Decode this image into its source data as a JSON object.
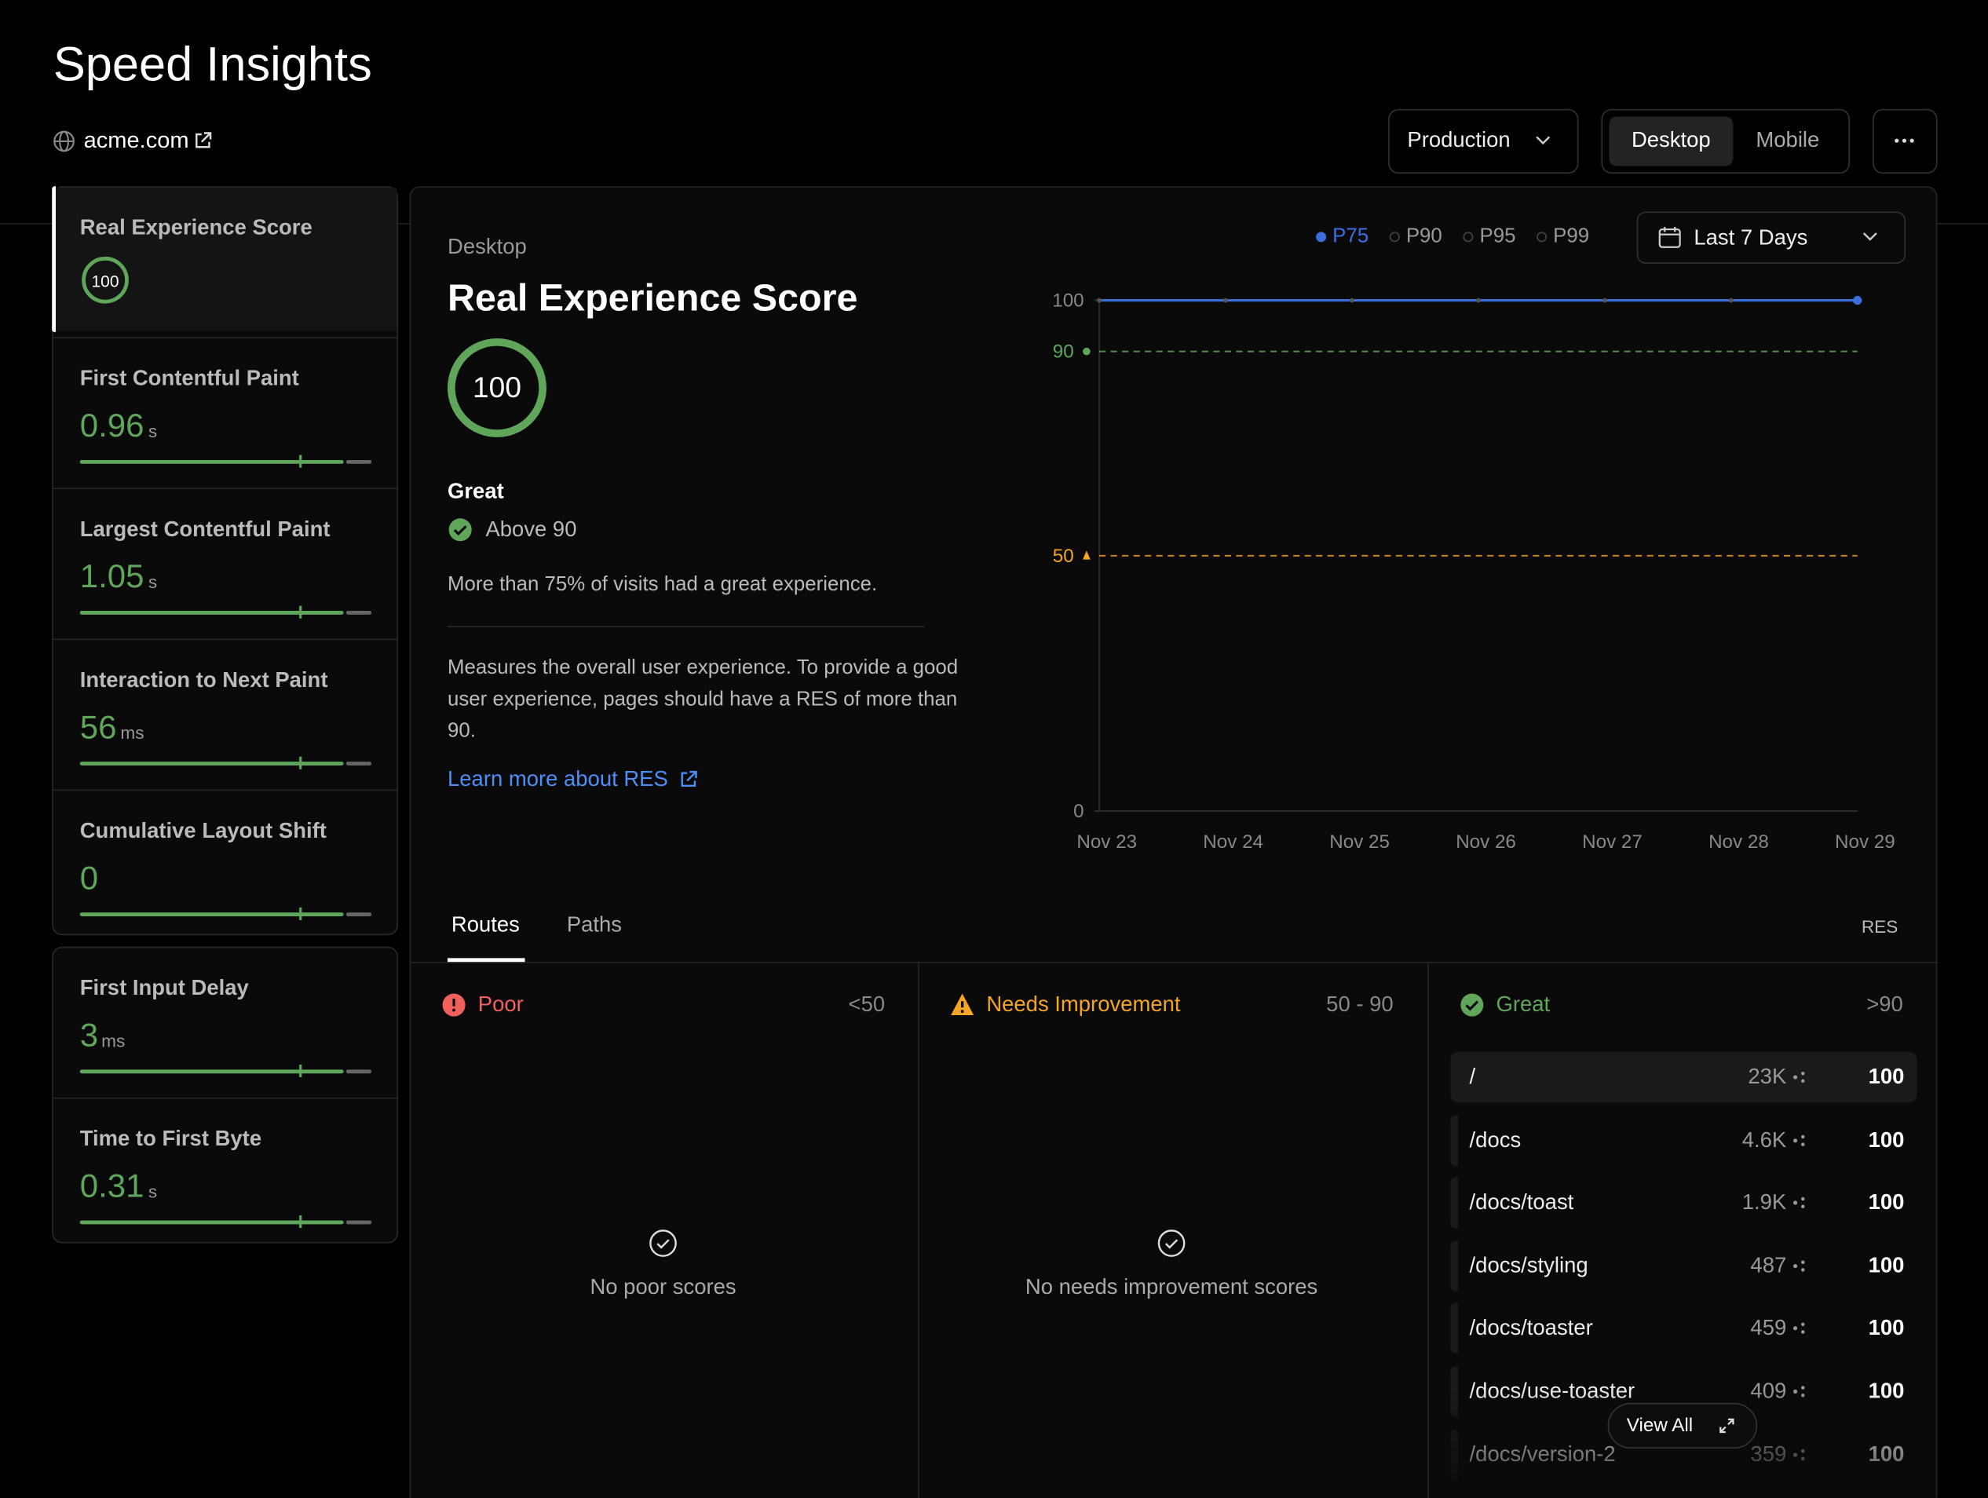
{
  "header": {
    "title": "Speed Insights",
    "site": "acme.com",
    "environment": "Production",
    "devices": [
      "Desktop",
      "Mobile"
    ]
  },
  "metric_groups": [
    [
      {
        "name": "Real Experience Score",
        "value": 100
      },
      {
        "name": "First Contentful Paint",
        "value": 0.96,
        "unit": "s"
      },
      {
        "name": "Largest Contentful Paint",
        "value": 1.05,
        "unit": "s"
      },
      {
        "name": "Interaction to Next Paint",
        "value": 56,
        "unit": "ms"
      },
      {
        "name": "Cumulative Layout Shift",
        "value": 0
      }
    ],
    [
      {
        "name": "First Input Delay",
        "value": 3,
        "unit": "ms"
      },
      {
        "name": "Time to First Byte",
        "value": 0.31,
        "unit": "s"
      }
    ]
  ],
  "detail": {
    "device": "Desktop",
    "title": "Real Experience Score",
    "score": 100,
    "rating": "Great",
    "threshold": "Above 90",
    "summary": "More than 75% of visits had a great experience.",
    "description": "Measures the overall user experience. To provide a good user experience, pages should have a RES of more than 90.",
    "link": "Learn more about RES"
  },
  "chart": {
    "type": "line",
    "percentiles": [
      "P75",
      "P90",
      "P95",
      "P99"
    ],
    "range": "Last 7 Days",
    "x": [
      "Nov 23",
      "Nov 24",
      "Nov 25",
      "Nov 26",
      "Nov 27",
      "Nov 28",
      "Nov 29"
    ],
    "series": [
      {
        "name": "P75",
        "color": "#3b6fe0",
        "values": [
          100,
          100,
          100,
          100,
          100,
          100,
          100
        ]
      }
    ],
    "ylim": [
      0,
      100
    ],
    "yticks": [
      0,
      100
    ],
    "thresholds": [
      {
        "value": 90,
        "color": "#5fa55a"
      },
      {
        "value": 50,
        "color": "#f5a524"
      }
    ]
  },
  "tabs": [
    "Routes",
    "Paths"
  ],
  "metric_label": "RES",
  "buckets": [
    {
      "name": "Poor",
      "range": "<50",
      "color": "#f0605d",
      "empty": "No poor scores"
    },
    {
      "name": "Needs Improvement",
      "range": "50 - 90",
      "color": "#f5a524",
      "empty": "No needs improvement scores"
    },
    {
      "name": "Great",
      "range": ">90",
      "color": "#5fa55a",
      "routes": [
        {
          "path": "/",
          "visits": "23K",
          "score": 100
        },
        {
          "path": "/docs",
          "visits": "4.6K",
          "score": 100
        },
        {
          "path": "/docs/toast",
          "visits": "1.9K",
          "score": 100
        },
        {
          "path": "/docs/styling",
          "visits": "487",
          "score": 100
        },
        {
          "path": "/docs/toaster",
          "visits": "459",
          "score": 100
        },
        {
          "path": "/docs/use-toaster",
          "visits": "409",
          "score": 100
        },
        {
          "path": "/docs/version-2",
          "visits": "359",
          "score": 100
        }
      ]
    }
  ],
  "view_all": "View All"
}
